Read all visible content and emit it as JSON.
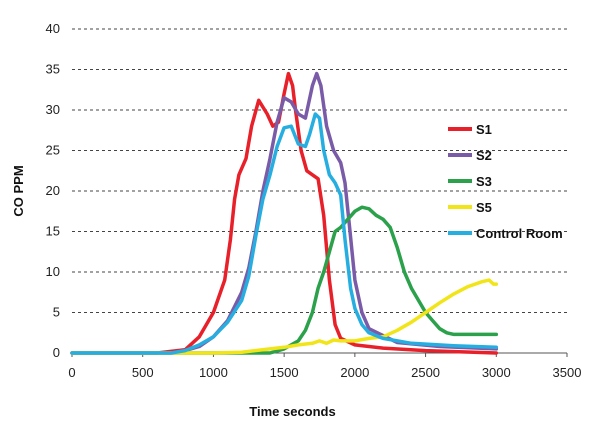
{
  "chart_data": {
    "type": "line",
    "title": "",
    "xlabel": "Time  seconds",
    "ylabel": "CO  PPM",
    "xlim": [
      0,
      3500
    ],
    "ylim": [
      0,
      40
    ],
    "xticks": [
      0,
      500,
      1000,
      1500,
      2000,
      2500,
      3000,
      3500
    ],
    "yticks": [
      0,
      5,
      10,
      15,
      20,
      25,
      30,
      35,
      40
    ],
    "grid": "horizontal dashed",
    "legend_position": "right",
    "series": [
      {
        "name": "S1",
        "color": "#e8202a",
        "points": [
          [
            0,
            0
          ],
          [
            600,
            0
          ],
          [
            800,
            0.4
          ],
          [
            900,
            2
          ],
          [
            1000,
            5
          ],
          [
            1080,
            9
          ],
          [
            1120,
            14
          ],
          [
            1150,
            19
          ],
          [
            1180,
            22
          ],
          [
            1230,
            24
          ],
          [
            1270,
            28
          ],
          [
            1320,
            31.2
          ],
          [
            1380,
            29.5
          ],
          [
            1420,
            28
          ],
          [
            1460,
            28.5
          ],
          [
            1500,
            32
          ],
          [
            1530,
            34.5
          ],
          [
            1560,
            33
          ],
          [
            1580,
            30
          ],
          [
            1620,
            25
          ],
          [
            1660,
            22.5
          ],
          [
            1700,
            22
          ],
          [
            1740,
            21.5
          ],
          [
            1780,
            17
          ],
          [
            1820,
            9
          ],
          [
            1860,
            3.5
          ],
          [
            1900,
            1.8
          ],
          [
            2000,
            1
          ],
          [
            2200,
            0.6
          ],
          [
            2500,
            0.3
          ],
          [
            3000,
            0
          ]
        ]
      },
      {
        "name": "S2",
        "color": "#7a5ba8",
        "points": [
          [
            0,
            0
          ],
          [
            700,
            0
          ],
          [
            800,
            0.3
          ],
          [
            900,
            0.8
          ],
          [
            1000,
            2
          ],
          [
            1100,
            4
          ],
          [
            1200,
            7.5
          ],
          [
            1250,
            10.5
          ],
          [
            1300,
            15
          ],
          [
            1350,
            20
          ],
          [
            1400,
            24
          ],
          [
            1450,
            28.5
          ],
          [
            1500,
            31.5
          ],
          [
            1550,
            31
          ],
          [
            1600,
            29.5
          ],
          [
            1650,
            29
          ],
          [
            1700,
            33
          ],
          [
            1730,
            34.5
          ],
          [
            1760,
            33
          ],
          [
            1800,
            28
          ],
          [
            1850,
            25
          ],
          [
            1900,
            23.5
          ],
          [
            1930,
            21
          ],
          [
            1960,
            16
          ],
          [
            2000,
            9
          ],
          [
            2050,
            5
          ],
          [
            2100,
            3
          ],
          [
            2300,
            1.3
          ],
          [
            2600,
            0.8
          ],
          [
            3000,
            0.5
          ]
        ]
      },
      {
        "name": "S3",
        "color": "#2aa14a",
        "points": [
          [
            0,
            0
          ],
          [
            1400,
            0
          ],
          [
            1500,
            0.5
          ],
          [
            1600,
            1.5
          ],
          [
            1650,
            2.8
          ],
          [
            1700,
            5
          ],
          [
            1740,
            8
          ],
          [
            1780,
            10
          ],
          [
            1820,
            12.5
          ],
          [
            1860,
            15
          ],
          [
            1900,
            15.5
          ],
          [
            1950,
            16.5
          ],
          [
            2000,
            17.5
          ],
          [
            2050,
            18
          ],
          [
            2100,
            17.8
          ],
          [
            2150,
            17
          ],
          [
            2200,
            16.5
          ],
          [
            2250,
            15.5
          ],
          [
            2300,
            13
          ],
          [
            2350,
            10
          ],
          [
            2400,
            8
          ],
          [
            2450,
            6.5
          ],
          [
            2500,
            5
          ],
          [
            2550,
            4
          ],
          [
            2600,
            3
          ],
          [
            2650,
            2.5
          ],
          [
            2700,
            2.3
          ],
          [
            3000,
            2.3
          ]
        ]
      },
      {
        "name": "S5",
        "color": "#f1e51a",
        "points": [
          [
            0,
            0
          ],
          [
            1000,
            0
          ],
          [
            1200,
            0.1
          ],
          [
            1400,
            0.5
          ],
          [
            1500,
            0.7
          ],
          [
            1600,
            1
          ],
          [
            1700,
            1.2
          ],
          [
            1750,
            1.5
          ],
          [
            1800,
            1.2
          ],
          [
            1850,
            1.6
          ],
          [
            1900,
            1.5
          ],
          [
            2000,
            1.5
          ],
          [
            2100,
            1.8
          ],
          [
            2200,
            2
          ],
          [
            2300,
            2.8
          ],
          [
            2400,
            3.8
          ],
          [
            2500,
            5
          ],
          [
            2600,
            6.2
          ],
          [
            2700,
            7.3
          ],
          [
            2800,
            8.2
          ],
          [
            2900,
            8.8
          ],
          [
            2950,
            9
          ],
          [
            2980,
            8.5
          ],
          [
            3000,
            8.5
          ]
        ]
      },
      {
        "name": "Control Room",
        "color": "#27aee0",
        "points": [
          [
            0,
            0
          ],
          [
            700,
            0
          ],
          [
            800,
            0.3
          ],
          [
            900,
            1
          ],
          [
            1000,
            2
          ],
          [
            1100,
            3.8
          ],
          [
            1200,
            6.5
          ],
          [
            1250,
            9.5
          ],
          [
            1300,
            14.5
          ],
          [
            1350,
            19
          ],
          [
            1400,
            22
          ],
          [
            1450,
            25.5
          ],
          [
            1500,
            27.8
          ],
          [
            1550,
            28
          ],
          [
            1600,
            25.8
          ],
          [
            1650,
            25.5
          ],
          [
            1680,
            27
          ],
          [
            1720,
            29.5
          ],
          [
            1750,
            29
          ],
          [
            1780,
            25
          ],
          [
            1820,
            22
          ],
          [
            1860,
            21
          ],
          [
            1900,
            19.5
          ],
          [
            1930,
            14
          ],
          [
            1970,
            8
          ],
          [
            2000,
            5.5
          ],
          [
            2050,
            3.5
          ],
          [
            2100,
            2.5
          ],
          [
            2200,
            1.8
          ],
          [
            2400,
            1.2
          ],
          [
            2700,
            0.9
          ],
          [
            3000,
            0.7
          ]
        ]
      }
    ]
  }
}
